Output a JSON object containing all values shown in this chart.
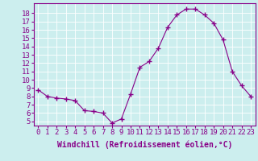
{
  "x": [
    0,
    1,
    2,
    3,
    4,
    5,
    6,
    7,
    8,
    9,
    10,
    11,
    12,
    13,
    14,
    15,
    16,
    17,
    18,
    19,
    20,
    21,
    22,
    23
  ],
  "y": [
    8.8,
    8.0,
    7.8,
    7.7,
    7.5,
    6.3,
    6.2,
    6.0,
    4.8,
    5.3,
    8.3,
    11.5,
    12.2,
    13.8,
    16.3,
    17.8,
    18.5,
    18.5,
    17.8,
    16.8,
    14.8,
    11.0,
    9.3,
    8.0
  ],
  "line_color": "#880088",
  "marker": "+",
  "marker_size": 4,
  "bg_color": "#cceeee",
  "grid_color": "#aacccc",
  "xlabel": "Windchill (Refroidissement éolien,°C)",
  "xlabel_fontsize": 7,
  "ytick_vals": [
    5,
    6,
    7,
    8,
    9,
    10,
    11,
    12,
    13,
    14,
    15,
    16,
    17,
    18
  ],
  "xtick_labels": [
    "0",
    "1",
    "2",
    "3",
    "4",
    "5",
    "6",
    "7",
    "8",
    "9",
    "10",
    "11",
    "12",
    "13",
    "14",
    "15",
    "16",
    "17",
    "18",
    "19",
    "20",
    "21",
    "22",
    "23"
  ],
  "ylim": [
    4.5,
    19.2
  ],
  "xlim": [
    -0.5,
    23.5
  ],
  "tick_fontsize": 6.5,
  "label_color": "#880088",
  "spine_color": "#880088"
}
